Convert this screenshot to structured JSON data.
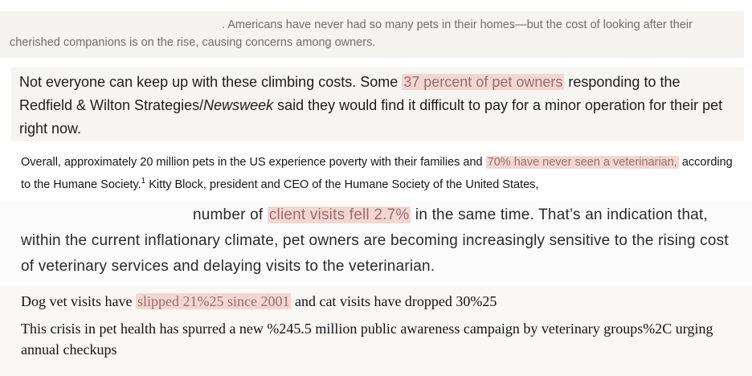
{
  "block1": {
    "pre": ". Americans have never had so many pets in their homes—but the cost of looking after their cherished companions is on the rise, causing concerns among owners."
  },
  "block2": {
    "pre": "Not everyone can keep up with these climbing costs. Some ",
    "highlight": "37 percent of pet owners",
    "mid": " responding to the Redfield & Wilton Strategies/",
    "italic": "Newsweek",
    "post": " said they would find it difficult to pay for a minor operation for their pet right now."
  },
  "block3": {
    "pre": "Overall, approximately 20 million pets in the US experience poverty with their families and ",
    "highlight": "70% have never seen a veterinarian,",
    "mid": " according to the Humane Society.",
    "sup": "1",
    "post": " Kitty Block, president and CEO of the Humane Society of the United States,"
  },
  "block4": {
    "pre": "number of ",
    "highlight": "client visits fell 2.7%",
    "post": " in the same time. That’s an indication that, within the current inflationary climate, pet owners are becoming increasingly sensitive to the rising cost of veterinary services and delaying visits to the veterinarian."
  },
  "block5": {
    "line1_pre": "Dog vet visits have ",
    "line1_highlight": "slipped 21%25 since 2001",
    "line1_post": " and cat visits have dropped 30%25",
    "line2": "This crisis in pet health has spurred a new %245.5 million public awareness campaign by veterinary groups%2C urging annual checkups"
  }
}
